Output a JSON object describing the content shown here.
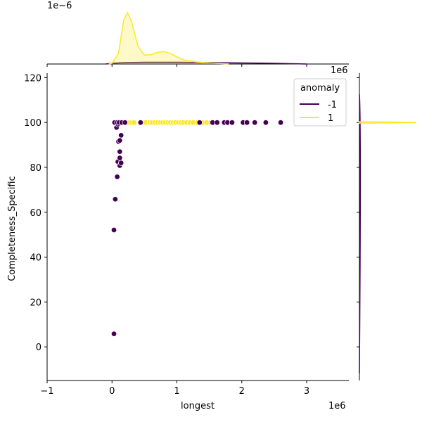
{
  "chart_data": {
    "type": "scatter",
    "xlabel": "longest",
    "ylabel": "Completeness_Specific",
    "x_offset_label": "1e6",
    "y2_offset_label": "1e6",
    "top_offset_label": "1e−6",
    "xlim": [
      -1.0,
      3.65
    ],
    "ylim": [
      -15,
      122
    ],
    "x_ticks": [
      -1,
      0,
      1,
      2,
      3
    ],
    "y_ticks": [
      0,
      20,
      40,
      60,
      80,
      100,
      120
    ],
    "x_tick_labels": [
      "−1",
      "0",
      "1",
      "2",
      "3"
    ],
    "y_tick_labels": [
      "0",
      "20",
      "40",
      "60",
      "80",
      "100",
      "120"
    ],
    "legend": {
      "title": "anomaly",
      "placement": "top-right",
      "entries": [
        {
          "label": "-1",
          "color": "#440154"
        },
        {
          "label": "1",
          "color": "#fde725"
        }
      ]
    },
    "series": [
      {
        "name": "-1",
        "color": "#440154",
        "points": [
          [
            0.03,
            5.8
          ],
          [
            0.03,
            52.1
          ],
          [
            0.05,
            65.8
          ],
          [
            0.08,
            75.8
          ],
          [
            0.09,
            82.5
          ],
          [
            0.12,
            80.8
          ],
          [
            0.14,
            82.0
          ],
          [
            0.12,
            84.2
          ],
          [
            0.12,
            87.0
          ],
          [
            0.1,
            91.5
          ],
          [
            0.12,
            92.0
          ],
          [
            0.14,
            94.3
          ],
          [
            0.07,
            97.8
          ],
          [
            0.09,
            99.2
          ],
          [
            0.04,
            100
          ],
          [
            0.08,
            100
          ],
          [
            0.11,
            100
          ],
          [
            0.15,
            100
          ],
          [
            0.2,
            100
          ],
          [
            0.44,
            100
          ],
          [
            1.35,
            100
          ],
          [
            1.55,
            100
          ],
          [
            1.62,
            100
          ],
          [
            1.73,
            100
          ],
          [
            1.78,
            100
          ],
          [
            1.85,
            100
          ],
          [
            2.02,
            100
          ],
          [
            2.08,
            100
          ],
          [
            2.2,
            100
          ],
          [
            2.37,
            100
          ],
          [
            2.6,
            100
          ]
        ]
      },
      {
        "name": "1",
        "color": "#fde725",
        "points": [
          [
            0.18,
            100
          ],
          [
            0.23,
            100
          ],
          [
            0.27,
            100
          ],
          [
            0.3,
            100
          ],
          [
            0.34,
            100
          ],
          [
            0.48,
            100
          ],
          [
            0.52,
            100
          ],
          [
            0.58,
            100
          ],
          [
            0.62,
            100
          ],
          [
            0.66,
            100
          ],
          [
            0.7,
            100
          ],
          [
            0.74,
            100
          ],
          [
            0.78,
            100
          ],
          [
            0.82,
            100
          ],
          [
            0.86,
            100
          ],
          [
            0.9,
            100
          ],
          [
            0.94,
            100
          ],
          [
            0.98,
            100
          ],
          [
            1.02,
            100
          ],
          [
            1.06,
            100
          ],
          [
            1.1,
            100
          ],
          [
            1.15,
            100
          ],
          [
            1.2,
            100
          ],
          [
            1.25,
            100
          ],
          [
            1.32,
            100
          ],
          [
            1.4,
            100
          ],
          [
            1.46,
            100
          ],
          [
            1.52,
            100
          ]
        ]
      }
    ],
    "marginal_x": {
      "series": [
        {
          "name": "-1",
          "color": "#440154",
          "x": [
            -0.1,
            0.0,
            0.2,
            0.5,
            1.0,
            1.5,
            2.0,
            2.5,
            3.0
          ],
          "y": [
            0.0,
            0.02,
            0.04,
            0.05,
            0.05,
            0.04,
            0.03,
            0.02,
            0.0
          ]
        },
        {
          "name": "1",
          "color": "#fde725",
          "x": [
            -0.05,
            0.0,
            0.1,
            0.18,
            0.24,
            0.3,
            0.4,
            0.5,
            0.6,
            0.7,
            0.8,
            0.9,
            1.0,
            1.1,
            1.3,
            1.5,
            1.7,
            1.8
          ],
          "y": [
            0.0,
            0.02,
            0.3,
            1.25,
            1.45,
            1.2,
            0.5,
            0.25,
            0.26,
            0.33,
            0.35,
            0.3,
            0.2,
            0.12,
            0.06,
            0.03,
            0.01,
            0.0
          ]
        }
      ]
    },
    "marginal_y": {
      "series": [
        {
          "name": "-1",
          "color": "#440154",
          "peak_at": 100,
          "relative_height": 0.02
        },
        {
          "name": "1",
          "color": "#fde725",
          "peak_at": 100,
          "relative_height": 1.0
        }
      ]
    }
  }
}
